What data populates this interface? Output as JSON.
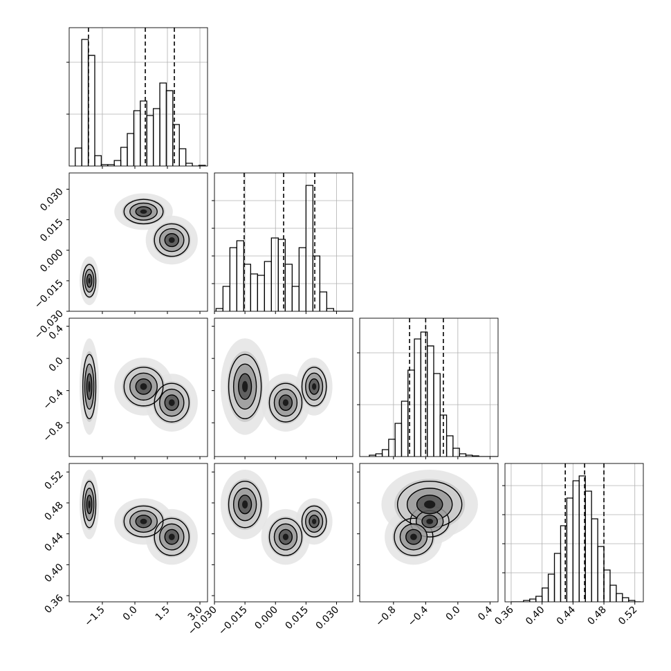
{
  "chart_data": {
    "type": "corner",
    "grid": true,
    "quantile_style": "dashed",
    "line_color": "#000000",
    "params": [
      {
        "xlim": [
          -3.03,
          3.35
        ],
        "xticks": [
          {
            "value": -1.5,
            "label": "−1.5"
          },
          {
            "value": 0,
            "label": "0.0"
          },
          {
            "value": 1.5,
            "label": "1.5"
          },
          {
            "value": 3,
            "label": "3.0"
          }
        ],
        "hist": {
          "bins": [
            -2.75,
            -2.45,
            -2.15,
            -1.85,
            -1.55,
            -1.25,
            -0.95,
            -0.65,
            -0.35,
            -0.05,
            0.25,
            0.55,
            0.85,
            1.15,
            1.45,
            1.75,
            2.05,
            2.35,
            2.65,
            2.95,
            3.25
          ],
          "values": [
            347,
            2440,
            2133,
            200,
            27,
            27,
            107,
            360,
            627,
            1067,
            1253,
            973,
            1107,
            1600,
            1453,
            800,
            333,
            53,
            0,
            13
          ],
          "ylim": [
            0,
            2667
          ],
          "yticks": [
            1000,
            2000
          ]
        },
        "quantiles": [
          -2.14,
          0.48,
          1.82
        ]
      },
      {
        "xlim": [
          -0.03,
          0.038
        ],
        "xticks": [
          {
            "value": -0.03,
            "label": "−0.030"
          },
          {
            "value": -0.015,
            "label": "−0.015"
          },
          {
            "value": 0,
            "label": "0.000"
          },
          {
            "value": 0.015,
            "label": "0.015"
          },
          {
            "value": 0.03,
            "label": "0.030"
          }
        ],
        "hist": {
          "bins": [
            -0.0292,
            -0.0258,
            -0.0224,
            -0.019,
            -0.0156,
            -0.0122,
            -0.0088,
            -0.0054,
            -0.002,
            0.0014,
            0.0048,
            0.0082,
            0.0116,
            0.015,
            0.0184,
            0.0218,
            0.0252,
            0.0286,
            0.032,
            0.0354,
            0.0388
          ],
          "values": [
            100,
            900,
            2300,
            2550,
            1700,
            1350,
            1300,
            1800,
            2650,
            2600,
            1700,
            900,
            2300,
            4550,
            2000,
            700,
            100,
            0,
            0,
            0
          ],
          "ylim": [
            0,
            5000
          ],
          "yticks": [
            1000,
            2000,
            3000,
            4000
          ]
        },
        "quantiles": [
          -0.0154,
          0.004,
          0.0193
        ]
      },
      {
        "xlim": [
          -1.22,
          0.5
        ],
        "xticks": [
          {
            "value": -0.8,
            "label": "−0.8"
          },
          {
            "value": -0.4,
            "label": "−0.4"
          },
          {
            "value": 0,
            "label": "0.0"
          },
          {
            "value": 0.4,
            "label": "0.4"
          }
        ],
        "hist": {
          "bins": [
            -1.1,
            -1.02,
            -0.94,
            -0.86,
            -0.78,
            -0.7,
            -0.62,
            -0.54,
            -0.46,
            -0.38,
            -0.3,
            -0.22,
            -0.14,
            -0.06,
            0.02,
            0.1,
            0.18,
            0.26,
            0.34,
            0.42,
            0.5
          ],
          "values": [
            27,
            53,
            133,
            333,
            640,
            1067,
            1667,
            2267,
            2400,
            2133,
            1600,
            800,
            400,
            160,
            53,
            27,
            13,
            0,
            0,
            0
          ],
          "ylim": [
            0,
            2667
          ],
          "yticks": [
            1000,
            2000
          ]
        },
        "quantiles": [
          -0.6,
          -0.4,
          -0.18
        ]
      },
      {
        "xlim": [
          0.352,
          0.531
        ],
        "xticks": [
          {
            "value": 0.36,
            "label": "0.36"
          },
          {
            "value": 0.4,
            "label": "0.40"
          },
          {
            "value": 0.44,
            "label": "0.44"
          },
          {
            "value": 0.48,
            "label": "0.48"
          },
          {
            "value": 0.52,
            "label": "0.52"
          }
        ],
        "hist": {
          "bins": [
            0.36,
            0.368,
            0.376,
            0.384,
            0.392,
            0.4,
            0.408,
            0.416,
            0.424,
            0.432,
            0.44,
            0.448,
            0.456,
            0.464,
            0.472,
            0.48,
            0.488,
            0.496,
            0.504,
            0.512,
            0.52,
            0.528
          ],
          "values": [
            0,
            0,
            48,
            95,
            190,
            476,
            952,
            1667,
            2619,
            3571,
            4167,
            4333,
            3810,
            2857,
            1905,
            1095,
            571,
            286,
            143,
            48,
            0
          ],
          "ylim": [
            0,
            4762
          ],
          "yticks": [
            1000,
            2000,
            3000,
            4000
          ]
        },
        "quantiles": [
          0.43,
          0.455,
          0.48
        ]
      }
    ],
    "modes": [
      {
        "center": [
          -2.1,
          -0.015,
          -0.35,
          0.478
        ],
        "sd": [
          0.15,
          0.004,
          0.2,
          0.015
        ]
      },
      {
        "center": [
          0.4,
          0.019,
          -0.35,
          0.456
        ],
        "sd": [
          0.45,
          0.003,
          0.12,
          0.01
        ]
      },
      {
        "center": [
          1.7,
          0.005,
          -0.55,
          0.436
        ],
        "sd": [
          0.4,
          0.004,
          0.12,
          0.012
        ]
      }
    ]
  }
}
